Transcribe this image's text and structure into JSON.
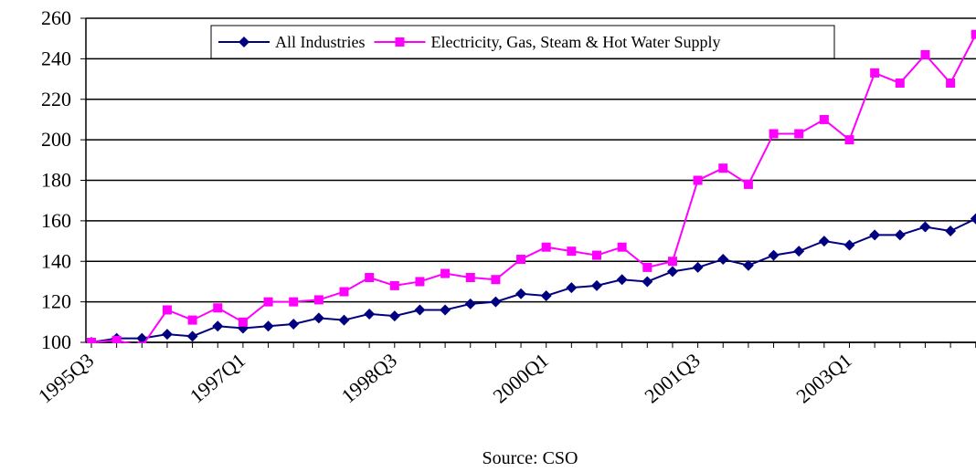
{
  "chart_data": {
    "type": "line",
    "annotation": "Source: CSO",
    "categories": [
      "1995Q3",
      null,
      null,
      null,
      null,
      null,
      "1997Q1",
      null,
      null,
      null,
      null,
      null,
      "1998Q3",
      null,
      null,
      null,
      null,
      null,
      "2000Q1",
      null,
      null,
      null,
      null,
      null,
      "2001Q3",
      null,
      null,
      null,
      null,
      null,
      "2003Q1",
      null,
      null,
      null,
      null,
      null
    ],
    "series": [
      {
        "name": "All Industries",
        "color": "#000080",
        "marker": "diamond",
        "values": [
          100,
          102,
          102,
          104,
          103,
          108,
          107,
          108,
          109,
          112,
          111,
          114,
          113,
          116,
          116,
          119,
          120,
          124,
          123,
          127,
          128,
          131,
          130,
          135,
          137,
          141,
          138,
          143,
          145,
          150,
          148,
          153,
          153,
          157,
          155,
          161
        ]
      },
      {
        "name": "Electricity, Gas, Steam & Hot Water Supply",
        "color": "#ff00ff",
        "marker": "square",
        "values": [
          100,
          101,
          98,
          116,
          111,
          117,
          110,
          120,
          120,
          121,
          125,
          132,
          128,
          130,
          134,
          132,
          131,
          141,
          147,
          145,
          143,
          147,
          137,
          140,
          180,
          186,
          178,
          203,
          203,
          210,
          200,
          233,
          228,
          242,
          228,
          252
        ]
      }
    ],
    "ylim": [
      100,
      260
    ],
    "yticks": [
      100,
      120,
      140,
      160,
      180,
      200,
      220,
      240,
      260
    ],
    "grid": true,
    "legend": "top"
  }
}
